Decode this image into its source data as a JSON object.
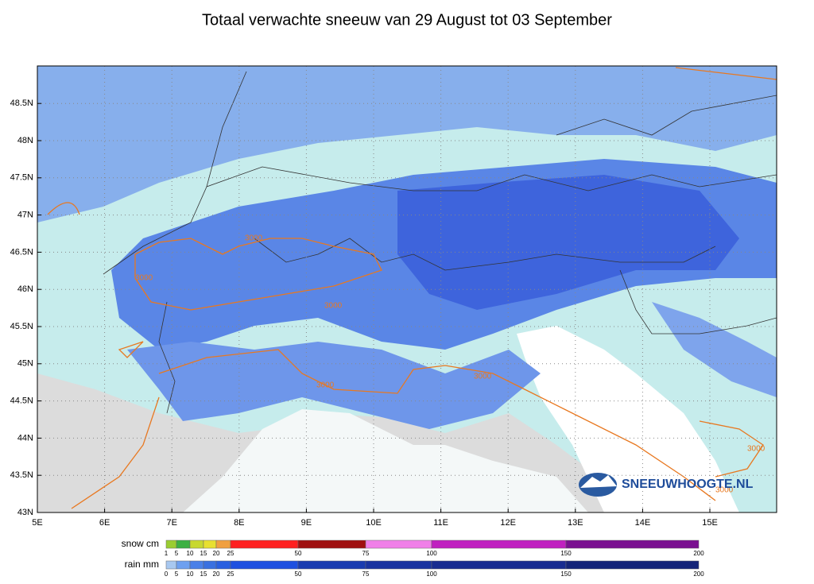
{
  "header": {
    "title": "Totaal verwachte sneeuw van 29 August tot 03 September"
  },
  "map": {
    "lat_labels": [
      "43N",
      "43.5N",
      "44N",
      "44.5N",
      "45N",
      "45.5N",
      "46N",
      "46.5N",
      "47N",
      "47.5N",
      "48N",
      "48.5N"
    ],
    "lon_labels": [
      "5E",
      "6E",
      "7E",
      "8E",
      "9E",
      "10E",
      "11E",
      "12E",
      "13E",
      "14E",
      "15E"
    ],
    "contour_labels": [
      "3000",
      "3000",
      "3000",
      "3000",
      "3000",
      "3000",
      "3000"
    ],
    "logo": "SNEEUWHOOGTE.NL"
  },
  "legend": {
    "snow": {
      "label": "snow cm",
      "ticks": [
        1,
        5,
        10,
        15,
        20,
        25,
        50,
        75,
        100,
        150,
        200
      ],
      "colors": [
        "#9acd32",
        "#3cb043",
        "#c8d830",
        "#e8e030",
        "#f0a040",
        "#ff2020",
        "#a01010",
        "#f080e8",
        "#c020c0",
        "#7a1090"
      ]
    },
    "rain": {
      "label": "rain mm",
      "ticks": [
        0,
        5,
        10,
        15,
        20,
        25,
        50,
        75,
        100,
        150,
        200
      ],
      "colors": [
        "#a8c8f0",
        "#6ea0f0",
        "#4a80e8",
        "#3a70e0",
        "#2a60e0",
        "#1e50e0",
        "#1a3cb0",
        "#1a34a0",
        "#182c90",
        "#142478"
      ]
    }
  }
}
